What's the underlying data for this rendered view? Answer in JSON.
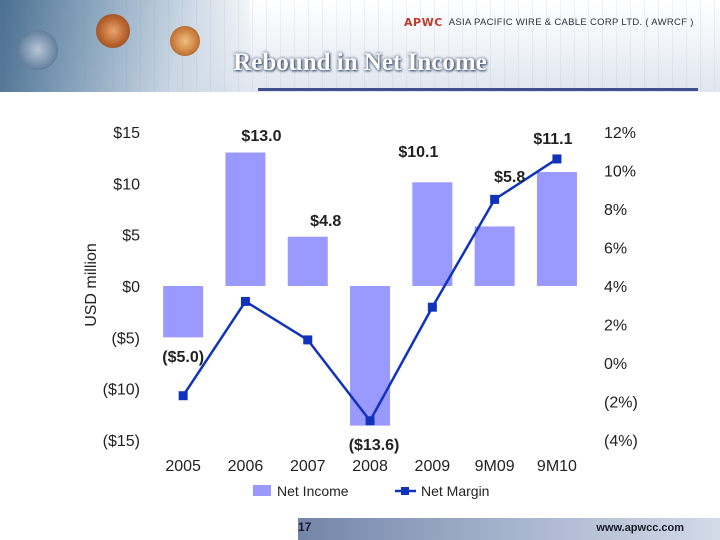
{
  "header": {
    "logo_mark": "APWC",
    "company": "ASIA PACIFIC WIRE & CABLE CORP LTD. ( AWRCF )"
  },
  "slide": {
    "title": "Rebound in Net Income",
    "page_number": "17",
    "website": "www.apwcc.com"
  },
  "colors": {
    "bar": "#9999FF",
    "line": "#1133BB",
    "text": "#222222"
  },
  "chart_data": {
    "type": "bar",
    "categories": [
      "2005",
      "2006",
      "2007",
      "2008",
      "2009",
      "9M09",
      "9M10"
    ],
    "series": [
      {
        "name": "Net Income",
        "type": "bar",
        "axis": "left",
        "values": [
          -5.0,
          13.0,
          4.8,
          -13.6,
          10.1,
          5.8,
          11.1
        ],
        "labels": [
          "($5.0)",
          "$13.0",
          "$4.8",
          "($13.6)",
          "$10.1",
          "$5.8",
          "$11.1"
        ]
      },
      {
        "name": "Net Margin",
        "type": "line",
        "axis": "right",
        "values": [
          -1.7,
          3.2,
          1.2,
          -3.0,
          2.9,
          8.5,
          10.6
        ]
      }
    ],
    "ylabel": "USD million",
    "ylim": [
      -15,
      15
    ],
    "y_ticks": [
      15,
      10,
      5,
      0,
      -5,
      -10,
      -15
    ],
    "y_tick_labels": [
      "$15",
      "$10",
      "$5",
      "$0",
      "($5)",
      "($10)",
      "($15)"
    ],
    "y2lim": [
      -4,
      12
    ],
    "y2_ticks": [
      12,
      10,
      8,
      6,
      4,
      2,
      0,
      -2,
      -4
    ],
    "y2_tick_labels": [
      "12%",
      "10%",
      "8%",
      "6%",
      "4%",
      "2%",
      "0%",
      "(2%)",
      "(4%)"
    ],
    "legend": [
      "Net Income",
      "Net Margin"
    ],
    "legend_position": "bottom",
    "grid": false
  }
}
